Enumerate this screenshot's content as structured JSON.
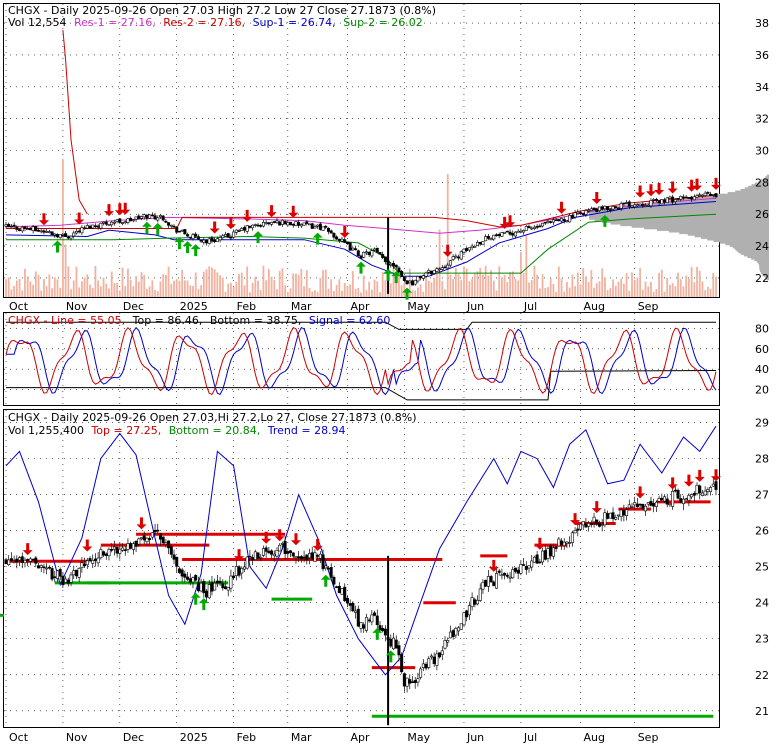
{
  "chart_data": [
    {
      "type": "candlestick",
      "ticker": "CHGX",
      "header": {
        "title": "CHGX - Daily 2025-09-26 Open 27.03  High 27.2  Low 27  Close 27.1873 (0.8%)",
        "volume": "Vol 12,554",
        "res1": "Res-1 = 27.16,",
        "res2": "Res-2 = 27.16,",
        "sup1": "Sup-1 = 26.74,",
        "sup2": "Sup-2 = 26.02"
      },
      "x_labels": [
        "Oct",
        "Nov",
        "Dec",
        "2025",
        "Feb",
        "Mar",
        "Apr",
        "May",
        "Jun",
        "Jul",
        "Aug",
        "Sep"
      ],
      "y_ticks": [
        22,
        24,
        26,
        28,
        30,
        32,
        34,
        36,
        38
      ],
      "ylim": [
        20.8,
        39.2
      ],
      "price_waypoints": [
        [
          0,
          25.2
        ],
        [
          8,
          25.1
        ],
        [
          15,
          24.9
        ],
        [
          22,
          24.6
        ],
        [
          30,
          25.2
        ],
        [
          38,
          25.5
        ],
        [
          45,
          25.6
        ],
        [
          52,
          25.9
        ],
        [
          58,
          25.8
        ],
        [
          62,
          25.1
        ],
        [
          68,
          24.6
        ],
        [
          74,
          24.3
        ],
        [
          82,
          24.6
        ],
        [
          88,
          25.1
        ],
        [
          95,
          25.4
        ],
        [
          102,
          25.5
        ],
        [
          110,
          25.3
        ],
        [
          116,
          25.2
        ],
        [
          120,
          24.8
        ],
        [
          126,
          24.0
        ],
        [
          131,
          23.4
        ],
        [
          136,
          23.7
        ],
        [
          140,
          23.0
        ],
        [
          144,
          22.8
        ],
        [
          147,
          21.8
        ],
        [
          150,
          21.7
        ],
        [
          154,
          22.2
        ],
        [
          160,
          22.6
        ],
        [
          166,
          23.3
        ],
        [
          172,
          24.0
        ],
        [
          178,
          24.6
        ],
        [
          184,
          24.7
        ],
        [
          190,
          25.0
        ],
        [
          196,
          25.2
        ],
        [
          202,
          25.5
        ],
        [
          208,
          25.8
        ],
        [
          214,
          26.2
        ],
        [
          220,
          26.3
        ],
        [
          228,
          26.6
        ],
        [
          236,
          26.7
        ],
        [
          244,
          26.9
        ],
        [
          252,
          27.0
        ],
        [
          258,
          27.2
        ],
        [
          262,
          27.15
        ]
      ],
      "res_line": [
        [
          0,
          25.1
        ],
        [
          63,
          25.1
        ],
        [
          65,
          25.8
        ],
        [
          140,
          25.8
        ],
        [
          141,
          25.8
        ],
        [
          158,
          25.8
        ],
        [
          170,
          25.6
        ],
        [
          182,
          25.2
        ],
        [
          190,
          25.3
        ],
        [
          200,
          25.7
        ],
        [
          212,
          26.2
        ],
        [
          230,
          26.7
        ],
        [
          262,
          27.2
        ]
      ],
      "sup_line": [
        [
          0,
          24.7
        ],
        [
          30,
          24.6
        ],
        [
          38,
          25.0
        ],
        [
          55,
          24.7
        ],
        [
          62,
          24.4
        ],
        [
          110,
          24.4
        ],
        [
          125,
          23.8
        ],
        [
          135,
          22.8
        ],
        [
          146,
          22.1
        ],
        [
          156,
          22.1
        ],
        [
          170,
          23.0
        ],
        [
          182,
          24.2
        ],
        [
          190,
          24.6
        ],
        [
          200,
          25.1
        ],
        [
          210,
          25.8
        ],
        [
          230,
          26.4
        ],
        [
          262,
          26.8
        ]
      ],
      "ma_line": [
        [
          0,
          25.2
        ],
        [
          20,
          25.3
        ],
        [
          40,
          25.6
        ],
        [
          60,
          25.8
        ],
        [
          90,
          25.7
        ],
        [
          110,
          25.6
        ],
        [
          125,
          25.3
        ],
        [
          140,
          25.1
        ],
        [
          160,
          24.8
        ],
        [
          175,
          25.0
        ],
        [
          190,
          25.3
        ],
        [
          205,
          25.8
        ],
        [
          220,
          26.3
        ],
        [
          240,
          26.7
        ],
        [
          262,
          27.0
        ]
      ],
      "green_line": [
        [
          0,
          24.4
        ],
        [
          40,
          24.4
        ],
        [
          60,
          24.5
        ],
        [
          90,
          24.6
        ],
        [
          110,
          24.5
        ],
        [
          130,
          24.2
        ],
        [
          140,
          23.3
        ],
        [
          145,
          22.3
        ],
        [
          190,
          22.3
        ],
        [
          200,
          23.8
        ],
        [
          215,
          25.5
        ],
        [
          230,
          25.7
        ],
        [
          262,
          26.0
        ]
      ],
      "down_arrows": [
        14,
        27,
        38,
        42,
        44,
        77,
        83,
        89,
        98,
        106,
        125,
        163,
        184,
        186,
        205,
        218,
        234,
        238,
        241,
        246,
        253,
        255,
        262
      ],
      "up_arrows": [
        19,
        52,
        56,
        64,
        67,
        70,
        93,
        115,
        131,
        141,
        144,
        148,
        221
      ],
      "volume_bars": [
        [
          22,
          0.35
        ],
        [
          160,
          0.45
        ],
        [
          176,
          0.15
        ],
        [
          190,
          0.3
        ],
        [
          229,
          0.16
        ],
        [
          252,
          0.12
        ]
      ],
      "volume_spikes": [
        [
          163,
          0.82
        ],
        [
          192,
          0.41
        ],
        [
          21,
          0.92
        ]
      ],
      "volume_profile_peaks": [
        [
          26.0,
          1.0
        ],
        [
          25.3,
          0.75
        ],
        [
          26.7,
          0.6
        ],
        [
          24.5,
          0.35
        ],
        [
          23.6,
          0.18
        ],
        [
          27.6,
          0.12
        ],
        [
          22.5,
          0.06
        ]
      ]
    },
    {
      "type": "line",
      "header": {
        "title": "CHGX - Line = 55.05,",
        "top": "Top = 86.46,",
        "bottom": "Bottom = 38.75,",
        "signal": "Signal = 62.60"
      },
      "y_ticks": [
        20,
        40,
        60,
        80
      ],
      "ylim": [
        5,
        95
      ],
      "top_line": [
        [
          0,
          86
        ],
        [
          50,
          86
        ],
        [
          140,
          86
        ],
        [
          145,
          79
        ],
        [
          170,
          79
        ],
        [
          172,
          86
        ],
        [
          262,
          86
        ]
      ],
      "bottom_line": [
        [
          0,
          22
        ],
        [
          140,
          22
        ],
        [
          148,
          10
        ],
        [
          200,
          10
        ],
        [
          201,
          38
        ],
        [
          262,
          38.75
        ]
      ],
      "line_cycles": 13,
      "line_center": 48,
      "line_amp": 25,
      "signal_lag": 3
    },
    {
      "type": "candlestick",
      "header": {
        "title": "CHGX - Daily 2025-09-26 Open 27.03,Hi 27.2,Lo 27,  Close 27.1873 (0.8%)",
        "volume": "Vol 1,255,400",
        "top": "Top = 27.25,",
        "bottom": "Bottom = 20.84,",
        "trend": "Trend = 28.94"
      },
      "x_labels": [
        "Oct",
        "Nov",
        "Dec",
        "2025",
        "Feb",
        "Mar",
        "Apr",
        "May",
        "Jun",
        "Jul",
        "Aug",
        "Sep"
      ],
      "y_ticks": [
        21,
        22,
        23,
        24,
        25,
        26,
        27,
        28,
        29
      ],
      "ylim": [
        20.55,
        29.35
      ],
      "trend_line": [
        [
          0,
          27.8
        ],
        [
          5,
          28.2
        ],
        [
          12,
          26.8
        ],
        [
          20,
          24.5
        ],
        [
          28,
          25.8
        ],
        [
          35,
          28.0
        ],
        [
          42,
          28.7
        ],
        [
          48,
          28.1
        ],
        [
          55,
          25.8
        ],
        [
          60,
          24.2
        ],
        [
          66,
          23.4
        ],
        [
          72,
          24.8
        ],
        [
          78,
          28.2
        ],
        [
          84,
          27.8
        ],
        [
          90,
          25.0
        ],
        [
          96,
          24.4
        ],
        [
          102,
          25.5
        ],
        [
          108,
          27.0
        ],
        [
          115,
          25.8
        ],
        [
          122,
          24.2
        ],
        [
          130,
          23.0
        ],
        [
          136,
          22.4
        ],
        [
          140,
          22.0
        ],
        [
          146,
          22.5
        ],
        [
          152,
          23.8
        ],
        [
          160,
          25.5
        ],
        [
          170,
          26.8
        ],
        [
          180,
          28.0
        ],
        [
          185,
          27.3
        ],
        [
          190,
          28.2
        ],
        [
          196,
          28.0
        ],
        [
          202,
          27.2
        ],
        [
          208,
          28.4
        ],
        [
          214,
          28.8
        ],
        [
          222,
          27.3
        ],
        [
          228,
          27.4
        ],
        [
          234,
          28.4
        ],
        [
          242,
          27.6
        ],
        [
          250,
          28.6
        ],
        [
          256,
          28.2
        ],
        [
          262,
          28.9
        ]
      ],
      "red_levels": [
        [
          0,
          25.15,
          30
        ],
        [
          35,
          25.6,
          40
        ],
        [
          48,
          25.9,
          55
        ],
        [
          65,
          25.2,
          96
        ],
        [
          135,
          22.2,
          16
        ],
        [
          154,
          24.0,
          12
        ],
        [
          175,
          25.3,
          10
        ],
        [
          195,
          25.6,
          12
        ],
        [
          210,
          26.2,
          15
        ],
        [
          226,
          26.6,
          12
        ],
        [
          240,
          26.8,
          20
        ]
      ],
      "green_levels": [
        [
          -20,
          23.65,
          16
        ],
        [
          18,
          24.55,
          20
        ],
        [
          30,
          24.55,
          52
        ],
        [
          98,
          24.1,
          15
        ],
        [
          135,
          20.85,
          126
        ]
      ],
      "down_arrows": [
        8,
        30,
        50,
        86,
        96,
        101,
        107,
        115,
        180,
        197,
        210,
        218,
        234,
        246,
        252,
        256,
        262
      ],
      "up_arrows": [
        70,
        73,
        118,
        137,
        142
      ]
    }
  ]
}
